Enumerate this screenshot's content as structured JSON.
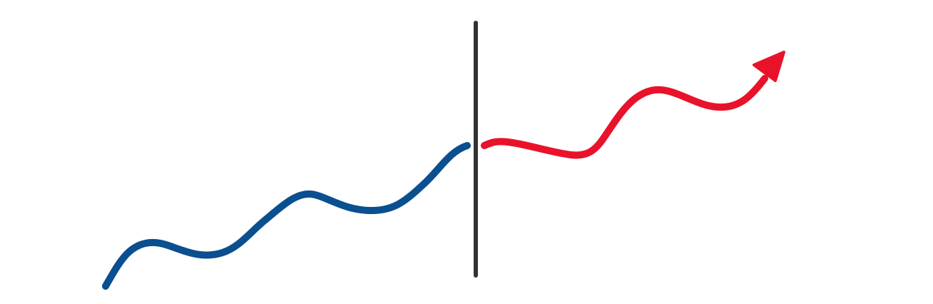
{
  "colors": {
    "background": "#ffffff",
    "past_trend": "#0a4f8f",
    "divider": "#333333",
    "future_trend": "#e8132a"
  },
  "icons": {
    "arrowhead": "arrowhead-icon"
  }
}
